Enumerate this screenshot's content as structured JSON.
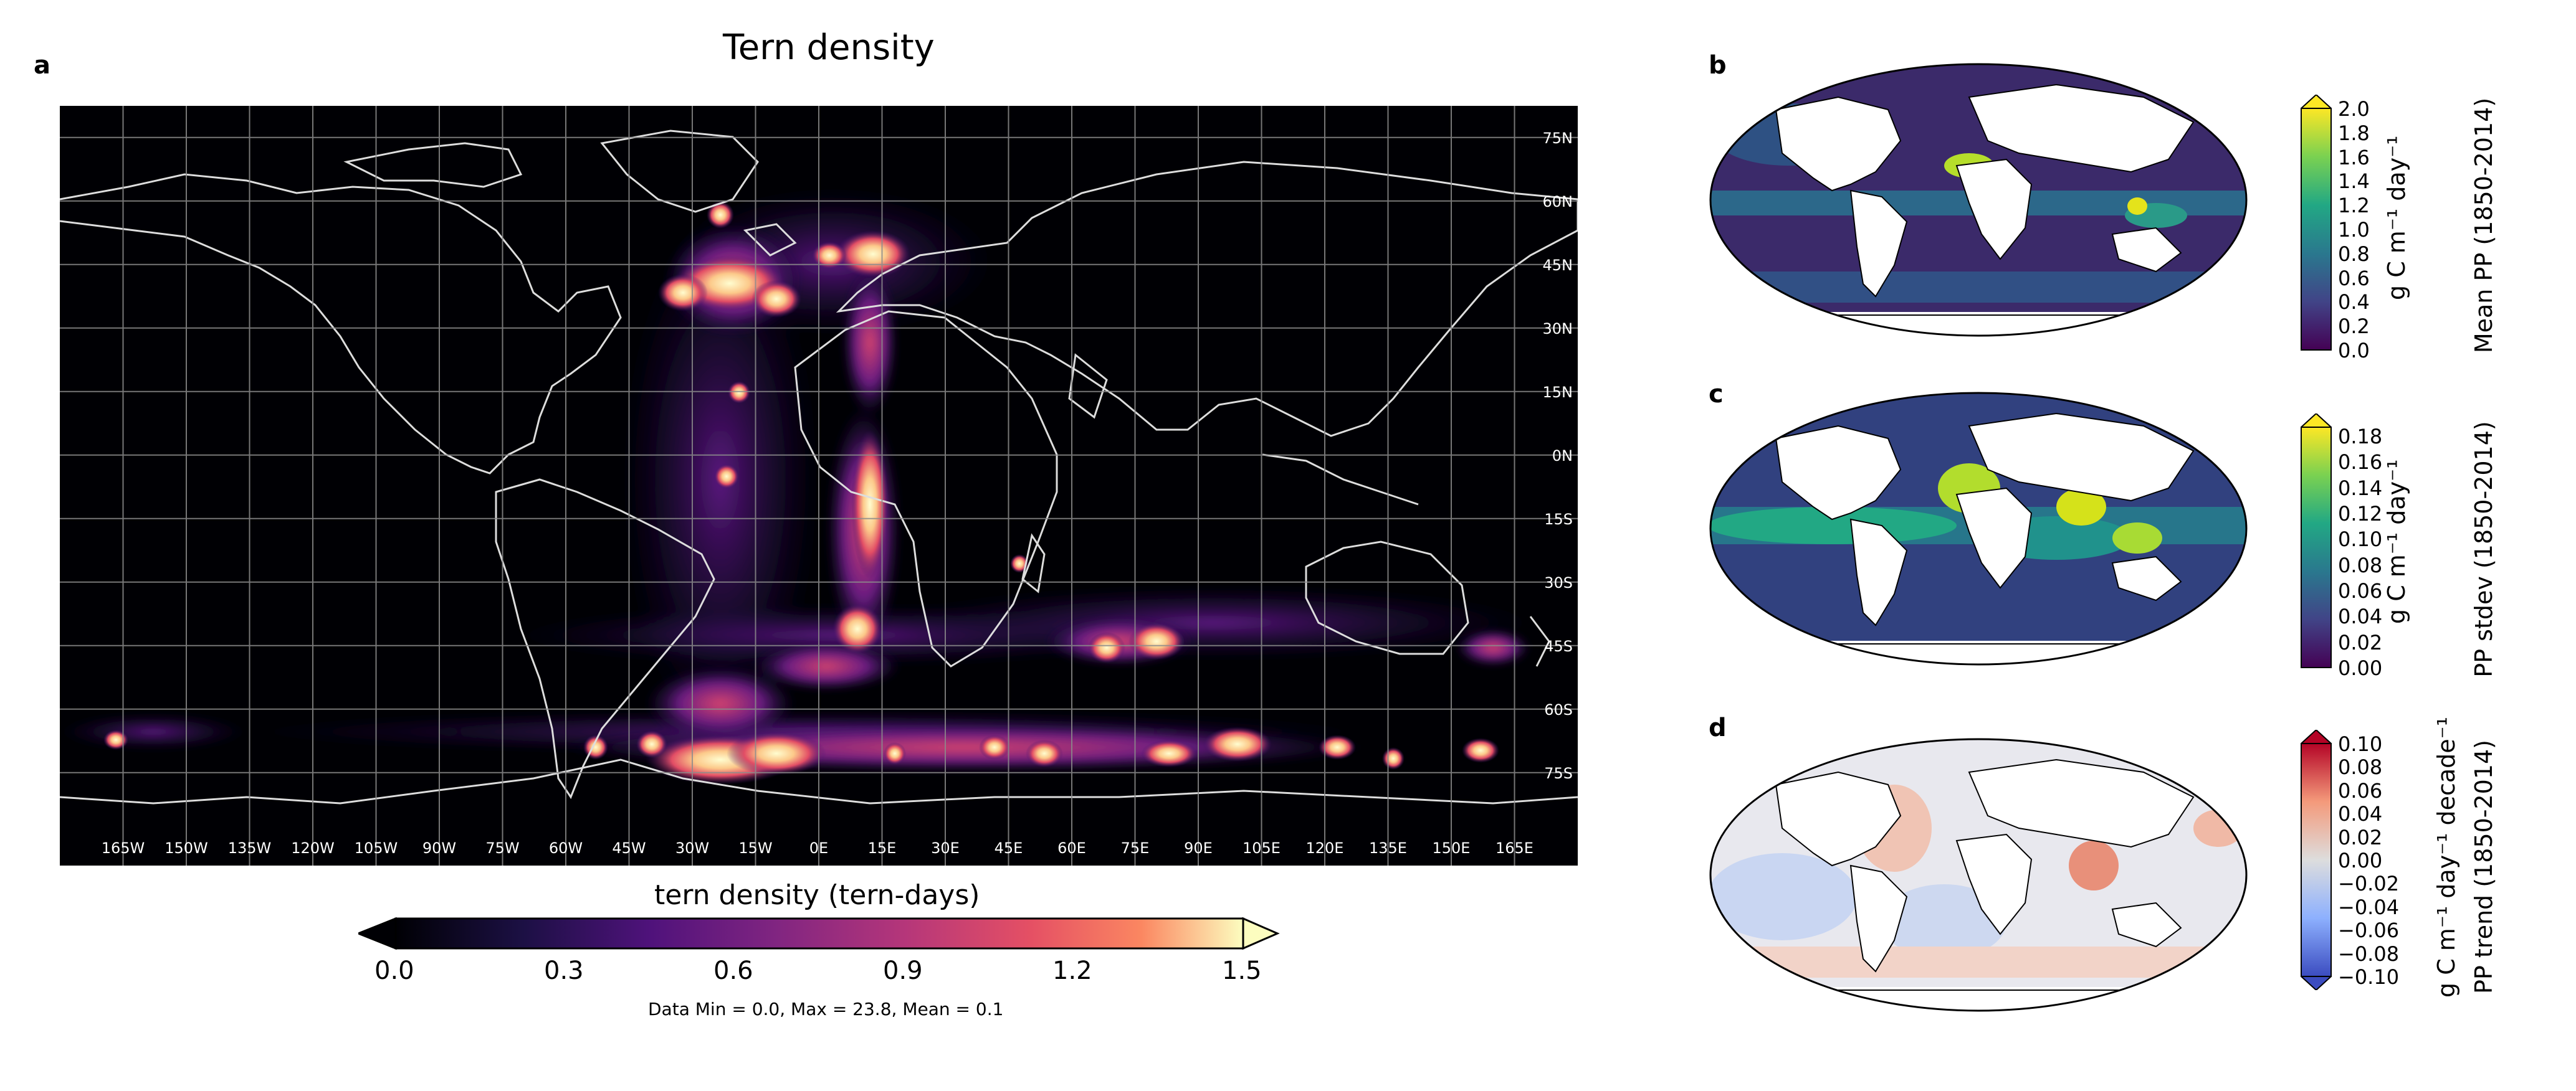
{
  "panel_a": {
    "letter": "a",
    "title": "Tern density",
    "colorbar_title": "tern density (tern-days)",
    "colorbar_ticks": [
      "0.0",
      "0.3",
      "0.6",
      "0.9",
      "1.2",
      "1.5"
    ],
    "data_summary": "Data Min = 0.0, Max = 23.8, Mean = 0.1",
    "lat_labels": [
      "75N",
      "60N",
      "45N",
      "30N",
      "15N",
      "0N",
      "15S",
      "30S",
      "45S",
      "60S",
      "75S"
    ],
    "lon_labels": [
      "165W",
      "150W",
      "135W",
      "120W",
      "105W",
      "90W",
      "75W",
      "60W",
      "45W",
      "30W",
      "15W",
      "0E",
      "15E",
      "30E",
      "45E",
      "60E",
      "75E",
      "90E",
      "105E",
      "120E",
      "135E",
      "150E",
      "165E"
    ],
    "colors": {
      "ocean": "#000004",
      "coast": "#dddddd",
      "grid": "#888888"
    }
  },
  "panel_b": {
    "letter": "b",
    "colorbar_label": "Mean PP (1850-2014)",
    "unit_label": "g C m⁻¹ day⁻¹",
    "colorbar_ticks": [
      "2.0",
      "1.8",
      "1.6",
      "1.4",
      "1.2",
      "1.0",
      "0.8",
      "0.6",
      "0.4",
      "0.2",
      "0.0"
    ]
  },
  "panel_c": {
    "letter": "c",
    "colorbar_label": "PP stdev (1850-2014)",
    "unit_label": "g C m⁻¹ day⁻¹",
    "colorbar_ticks": [
      "0.18",
      "0.16",
      "0.14",
      "0.12",
      "0.10",
      "0.08",
      "0.06",
      "0.04",
      "0.02",
      "0.00"
    ]
  },
  "panel_d": {
    "letter": "d",
    "colorbar_label": "PP trend (1850-2014)",
    "unit_label": "g C m⁻¹ day⁻¹ decade⁻¹",
    "colorbar_ticks": [
      "0.10",
      "0.08",
      "0.06",
      "0.04",
      "0.02",
      "0.00",
      "−0.02",
      "−0.04",
      "−0.06",
      "−0.08",
      "−0.10"
    ]
  }
}
